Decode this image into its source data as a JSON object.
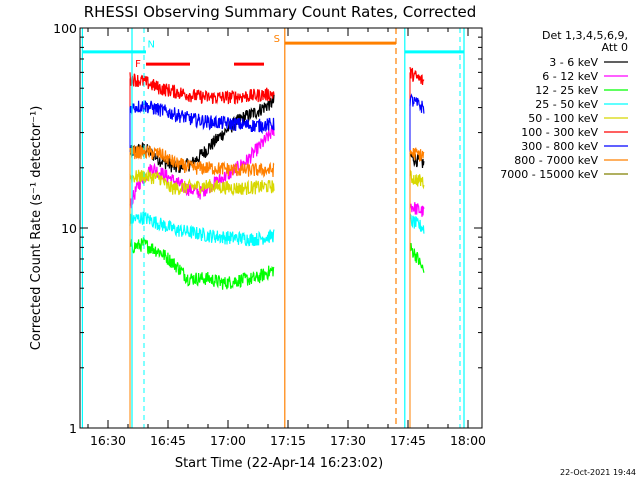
{
  "chart_data": {
    "type": "line",
    "title": "RHESSI Observing Summary Count Rates, Corrected",
    "xlabel": "Start Time (22-Apr-14 16:23:02)",
    "ylabel": "Corrected Count Rate (s⁻¹ detector⁻¹)",
    "x_unit": "minutes after 16:23:02",
    "xlim": [
      0,
      100.5
    ],
    "ylim": [
      1,
      100
    ],
    "yscale": "log",
    "x_ticks": [
      {
        "t": 7,
        "label": "16:30"
      },
      {
        "t": 22,
        "label": "16:45"
      },
      {
        "t": 37,
        "label": "17:00"
      },
      {
        "t": 52,
        "label": "17:15"
      },
      {
        "t": 67,
        "label": "17:30"
      },
      {
        "t": 82,
        "label": "17:45"
      },
      {
        "t": 97,
        "label": "18:00"
      }
    ],
    "y_ticks": [
      {
        "v": 1,
        "label": "1"
      },
      {
        "v": 10,
        "label": "10"
      },
      {
        "v": 100,
        "label": "100"
      }
    ],
    "legend_header": [
      "Det 1,3,4,5,6,9,",
      "Att 0"
    ],
    "legend_position": "right",
    "series": [
      {
        "name": "3 - 6 keV",
        "color": "#000000",
        "segments": [
          {
            "x": [
              12.5,
              16,
              20,
              24,
              28,
              32,
              36,
              40,
              44,
              48.5
            ],
            "y": [
              24,
              25,
              22,
              20,
              21,
              25,
              30,
              35,
              38,
              43
            ]
          },
          {
            "x": [
              82.5,
              84,
              86
            ],
            "y": [
              23,
              22,
              21
            ]
          }
        ]
      },
      {
        "name": "6 - 12 keV",
        "color": "#ff00ff",
        "segments": [
          {
            "x": [
              12.5,
              15,
              18,
              22,
              26,
              30,
              34,
              38,
              42,
              46,
              48.5
            ],
            "y": [
              13,
              17,
              20,
              18,
              16,
              15,
              17,
              19,
              22,
              27,
              31
            ]
          },
          {
            "x": [
              82.5,
              84,
              86
            ],
            "y": [
              13,
              12.5,
              12
            ]
          }
        ]
      },
      {
        "name": "12 - 25 keV",
        "color": "#00ff00",
        "segments": [
          {
            "x": [
              12.5,
              16,
              20,
              24,
              27,
              32,
              36,
              40,
              44,
              48.5
            ],
            "y": [
              8,
              8.3,
              7.6,
              6.5,
              5.6,
              5.6,
              5.3,
              5.5,
              5.6,
              6.2
            ]
          },
          {
            "x": [
              82.5,
              84,
              86
            ],
            "y": [
              8,
              7.3,
              6
            ]
          }
        ]
      },
      {
        "name": "25 - 50 keV",
        "color": "#00ffff",
        "segments": [
          {
            "x": [
              12.5,
              16,
              20,
              24,
              28,
              32,
              36,
              40,
              44,
              48.5
            ],
            "y": [
              11,
              11.3,
              10.5,
              9.8,
              9.5,
              9.2,
              9,
              8.9,
              8.8,
              9.2
            ]
          },
          {
            "x": [
              82.5,
              84,
              86
            ],
            "y": [
              11,
              10.5,
              10
            ]
          }
        ]
      },
      {
        "name": "50 - 100 keV",
        "color": "#d8d800",
        "segments": [
          {
            "x": [
              12.5,
              16,
              20,
              22,
              24,
              28,
              32,
              36,
              40,
              44,
              48.5
            ],
            "y": [
              18,
              18.2,
              17.8,
              16,
              15.8,
              16.1,
              16.3,
              16,
              15.8,
              16,
              16.2
            ]
          },
          {
            "x": [
              82.5,
              84,
              86
            ],
            "y": [
              18,
              17.5,
              17
            ]
          }
        ]
      },
      {
        "name": "100 - 300 keV",
        "color": "#ff0000",
        "segments": [
          {
            "x": [
              12.5,
              16,
              20,
              24,
              28,
              32,
              36,
              40,
              44,
              48.5
            ],
            "y": [
              56,
              54,
              50,
              48,
              46,
              45,
              45,
              45.5,
              46,
              47
            ]
          },
          {
            "x": [
              82.5,
              84,
              86
            ],
            "y": [
              60,
              57,
              54
            ]
          }
        ]
      },
      {
        "name": "300 - 800 keV",
        "color": "#0000ff",
        "segments": [
          {
            "x": [
              12.5,
              16,
              20,
              24,
              28,
              32,
              36,
              40,
              44,
              48.5
            ],
            "y": [
              40,
              41,
              39,
              37,
              35,
              34,
              33.5,
              33,
              32.5,
              33
            ]
          },
          {
            "x": [
              82.5,
              84,
              86
            ],
            "y": [
              44,
              42,
              40
            ]
          }
        ]
      },
      {
        "name": "800 - 7000 keV",
        "color": "#ff8000",
        "segments": [
          {
            "x": [
              12.5,
              16,
              20,
              24,
              28,
              32,
              36,
              40,
              44,
              48.5
            ],
            "y": [
              24,
              24,
              23.5,
              21,
              20,
              20,
              19.8,
              19.5,
              19.5,
              19.5
            ]
          },
          {
            "x": [
              82.5,
              84,
              86
            ],
            "y": [
              24,
              23.5,
              23
            ]
          }
        ]
      },
      {
        "name": "7000 - 15000 keV",
        "color": "#808000",
        "segments": []
      }
    ],
    "orbit_lines": {
      "color": "#00ffff",
      "times": [
        0.6,
        13.0,
        81.2,
        96.0
      ]
    },
    "orbit_levels": [
      {
        "x": [
          0.6,
          16.5
        ],
        "y": 76
      },
      {
        "x": [
          81.2,
          96.0
        ],
        "y": 76
      }
    ],
    "saa_lines": {
      "color": "#ff8000",
      "times": [
        51.2,
        79.0
      ]
    },
    "saa_level": {
      "x": [
        51.2,
        79.0
      ],
      "y": 84
    },
    "night_lines": {
      "color": "#00ffff",
      "times": [
        16.0,
        95.0
      ]
    },
    "flare_bars": {
      "color": "#ff0000",
      "y": 66,
      "spans": [
        [
          16.5,
          27.5
        ],
        [
          38.5,
          46.0
        ]
      ]
    },
    "flag_labels": [
      {
        "text": "N",
        "t": 17.8,
        "y": 80,
        "color": "#00ffff"
      },
      {
        "text": "F",
        "t": 14.5,
        "y": 64,
        "color": "#ff0000"
      },
      {
        "text": "S",
        "t": 49.2,
        "y": 85,
        "color": "#ff8000"
      }
    ],
    "timestamp": "22-Oct-2021 19:44"
  }
}
